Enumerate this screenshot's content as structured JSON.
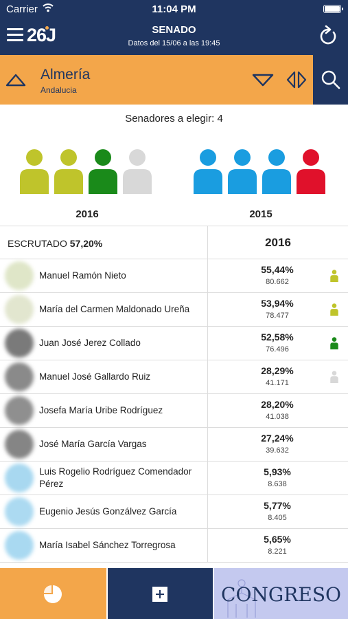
{
  "status_bar": {
    "carrier": "Carrier",
    "time": "11:04 PM"
  },
  "header": {
    "logo": "26J",
    "title": "SENADO",
    "subtitle": "Datos del 15/06 a las 19:45"
  },
  "province": {
    "name": "Almería",
    "region": "Andalucia"
  },
  "seats": {
    "label": "Senadores a elegir: 4",
    "years": [
      {
        "label": "2016",
        "colors": [
          "#bfc42b",
          "#bfc42b",
          "#1a8a1a",
          "#d8d8d8"
        ]
      },
      {
        "label": "2015",
        "colors": [
          "#1a9de0",
          "#1a9de0",
          "#1a9de0",
          "#e0112b"
        ]
      }
    ]
  },
  "table": {
    "scrutinized_label": "ESCRUTADO",
    "scrutinized_value": "57,20%",
    "year": "2016",
    "rows": [
      {
        "name": "Manuel Ramón Nieto",
        "pct": "55,44%",
        "votes": "80.662",
        "photo_color": "#dfe6c8",
        "seat_color": "#bfc42b"
      },
      {
        "name": "María del Carmen Maldonado Ureña",
        "pct": "53,94%",
        "votes": "78.477",
        "photo_color": "#e2e6cf",
        "seat_color": "#bfc42b"
      },
      {
        "name": "Juan José Jerez Collado",
        "pct": "52,58%",
        "votes": "76.496",
        "photo_color": "#7a7a7a",
        "seat_color": "#1a8a1a"
      },
      {
        "name": "Manuel José Gallardo Ruiz",
        "pct": "28,29%",
        "votes": "41.171",
        "photo_color": "#8a8a8a",
        "seat_color": "#d8d8d8"
      },
      {
        "name": "Josefa María Uribe Rodríguez",
        "pct": "28,20%",
        "votes": "41.038",
        "photo_color": "#8f8f8f",
        "seat_color": ""
      },
      {
        "name": "José María García Vargas",
        "pct": "27,24%",
        "votes": "39.632",
        "photo_color": "#858585",
        "seat_color": ""
      },
      {
        "name": "Luis Rogelio Rodríguez Comendador Pérez",
        "pct": "5,93%",
        "votes": "8.638",
        "photo_color": "#a8d8f0",
        "seat_color": ""
      },
      {
        "name": "Eugenio Jesús Gonzálvez García",
        "pct": "5,77%",
        "votes": "8.405",
        "photo_color": "#acdaf1",
        "seat_color": ""
      },
      {
        "name": "María Isabel Sánchez Torregrosa",
        "pct": "5,65%",
        "votes": "8.221",
        "photo_color": "#a9d9f1",
        "seat_color": ""
      }
    ]
  },
  "tabbar": {
    "congreso_label": "CONGRESO"
  },
  "colors": {
    "navy": "#1f3560",
    "orange": "#f3a64a",
    "lavender": "#c4c9ef"
  }
}
